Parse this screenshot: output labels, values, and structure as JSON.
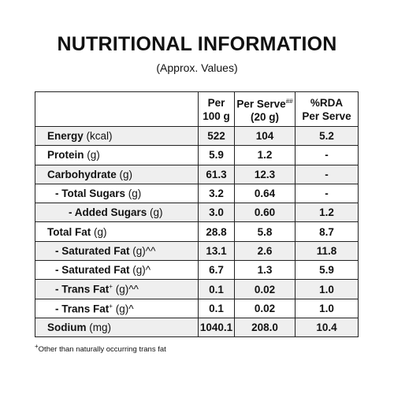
{
  "header": {
    "title": "NUTRITIONAL INFORMATION",
    "subtitle": "(Approx. Values)"
  },
  "table": {
    "columns": [
      {
        "text": "Per 100 g"
      },
      {
        "text": "Per Serve",
        "sup": "##",
        "line2": "(20 g)"
      },
      {
        "text": "%RDA",
        "line2": "Per Serve"
      }
    ],
    "rows": [
      {
        "name": "Energy",
        "unit": "(kcal)",
        "values": [
          "522",
          "104",
          "5.2"
        ]
      },
      {
        "name": "Protein",
        "unit": "(g)",
        "values": [
          "5.9",
          "1.2",
          "-"
        ]
      },
      {
        "name": "Carbohydrate",
        "unit": "(g)",
        "values": [
          "61.3",
          "12.3",
          "-"
        ]
      },
      {
        "name": "- Total Sugars",
        "unit": "(g)",
        "values": [
          "3.2",
          "0.64",
          "-"
        ]
      },
      {
        "name": "- Added Sugars",
        "unit": "(g)",
        "values": [
          "3.0",
          "0.60",
          "1.2"
        ]
      },
      {
        "name": "Total Fat",
        "unit": "(g)",
        "values": [
          "28.8",
          "5.8",
          "8.7"
        ]
      },
      {
        "name": "- Saturated Fat",
        "unit": "(g)^^",
        "values": [
          "13.1",
          "2.6",
          "11.8"
        ]
      },
      {
        "name": "- Saturated Fat",
        "unit": "(g)^",
        "values": [
          "6.7",
          "1.3",
          "5.9"
        ]
      },
      {
        "name": "- Trans Fat",
        "sup": "+",
        "unit": "(g)^^",
        "values": [
          "0.1",
          "0.02",
          "1.0"
        ]
      },
      {
        "name": "- Trans Fat",
        "sup": "+",
        "unit": "(g)^",
        "values": [
          "0.1",
          "0.02",
          "1.0"
        ]
      },
      {
        "name": "Sodium",
        "unit": "(mg)",
        "values": [
          "1040.1",
          "208.0",
          "10.4"
        ]
      }
    ]
  },
  "footnote": {
    "mark": "+",
    "text": "Other than naturally occurring trans fat"
  }
}
